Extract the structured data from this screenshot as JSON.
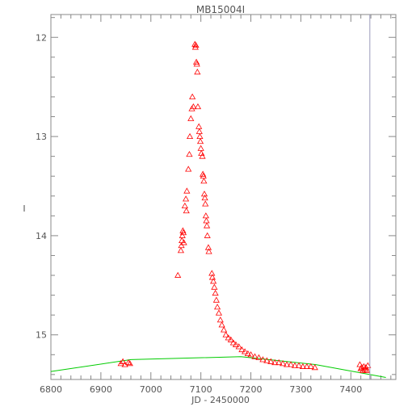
{
  "chart_data": {
    "type": "scatter",
    "title": "MB15004I",
    "xlabel": "JD - 2450000",
    "ylabel": "I",
    "xlim": [
      6800,
      7490
    ],
    "ylim": [
      15.45,
      11.77
    ],
    "y_inverted": true,
    "grid": false,
    "xticks": [
      6800,
      6900,
      7000,
      7100,
      7200,
      7300,
      7400
    ],
    "yticks": [
      12,
      13,
      14,
      15
    ],
    "marker_line_jd": 7438,
    "series": [
      {
        "marker": "triangle-open",
        "color": "#ff0000",
        "points": [
          [
            6940,
            15.29
          ],
          [
            6944,
            15.27
          ],
          [
            6948,
            15.3
          ],
          [
            6955,
            15.28
          ],
          [
            6958,
            15.29
          ],
          [
            7054,
            14.4
          ],
          [
            7060,
            14.15
          ],
          [
            7061,
            14.1
          ],
          [
            7062,
            14.05
          ],
          [
            7063,
            14.0
          ],
          [
            7064,
            13.95
          ],
          [
            7065,
            13.97
          ],
          [
            7066,
            14.07
          ],
          [
            7068,
            13.7
          ],
          [
            7070,
            13.63
          ],
          [
            7071,
            13.75
          ],
          [
            7072,
            13.55
          ],
          [
            7075,
            13.33
          ],
          [
            7077,
            13.18
          ],
          [
            7078,
            13.0
          ],
          [
            7080,
            12.82
          ],
          [
            7082,
            12.72
          ],
          [
            7083,
            12.6
          ],
          [
            7085,
            12.7
          ],
          [
            7088,
            12.07
          ],
          [
            7089,
            12.1
          ],
          [
            7090,
            12.08
          ],
          [
            7091,
            12.25
          ],
          [
            7092,
            12.27
          ],
          [
            7093,
            12.35
          ],
          [
            7094,
            12.7
          ],
          [
            7096,
            12.9
          ],
          [
            7097,
            12.95
          ],
          [
            7098,
            13.0
          ],
          [
            7099,
            13.05
          ],
          [
            7100,
            13.12
          ],
          [
            7101,
            13.17
          ],
          [
            7103,
            13.2
          ],
          [
            7104,
            13.38
          ],
          [
            7105,
            13.4
          ],
          [
            7106,
            13.45
          ],
          [
            7107,
            13.58
          ],
          [
            7108,
            13.62
          ],
          [
            7109,
            13.68
          ],
          [
            7110,
            13.8
          ],
          [
            7111,
            13.85
          ],
          [
            7112,
            13.9
          ],
          [
            7113,
            14.0
          ],
          [
            7115,
            14.12
          ],
          [
            7116,
            14.16
          ],
          [
            7122,
            14.38
          ],
          [
            7123,
            14.42
          ],
          [
            7125,
            14.46
          ],
          [
            7127,
            14.52
          ],
          [
            7129,
            14.58
          ],
          [
            7131,
            14.65
          ],
          [
            7133,
            14.72
          ],
          [
            7136,
            14.78
          ],
          [
            7139,
            14.85
          ],
          [
            7142,
            14.9
          ],
          [
            7146,
            14.95
          ],
          [
            7150,
            15.0
          ],
          [
            7155,
            15.03
          ],
          [
            7160,
            15.05
          ],
          [
            7165,
            15.08
          ],
          [
            7170,
            15.1
          ],
          [
            7176,
            15.12
          ],
          [
            7182,
            15.15
          ],
          [
            7188,
            15.17
          ],
          [
            7194,
            15.19
          ],
          [
            7200,
            15.2
          ],
          [
            7208,
            15.22
          ],
          [
            7216,
            15.23
          ],
          [
            7224,
            15.25
          ],
          [
            7232,
            15.26
          ],
          [
            7240,
            15.27
          ],
          [
            7248,
            15.28
          ],
          [
            7256,
            15.28
          ],
          [
            7264,
            15.29
          ],
          [
            7272,
            15.3
          ],
          [
            7280,
            15.3
          ],
          [
            7288,
            15.31
          ],
          [
            7296,
            15.31
          ],
          [
            7304,
            15.32
          ],
          [
            7312,
            15.32
          ],
          [
            7320,
            15.32
          ],
          [
            7328,
            15.33
          ],
          [
            7418,
            15.3
          ],
          [
            7420,
            15.34
          ],
          [
            7422,
            15.33
          ],
          [
            7424,
            15.36
          ],
          [
            7426,
            15.32
          ],
          [
            7428,
            15.35
          ],
          [
            7430,
            15.33
          ],
          [
            7432,
            15.36
          ],
          [
            7434,
            15.31
          ]
        ]
      },
      {
        "type": "line",
        "color": "#00cc00",
        "points": [
          [
            6800,
            15.37
          ],
          [
            6960,
            15.25
          ],
          [
            7180,
            15.22
          ],
          [
            7330,
            15.3
          ],
          [
            7470,
            15.43
          ]
        ]
      }
    ]
  }
}
